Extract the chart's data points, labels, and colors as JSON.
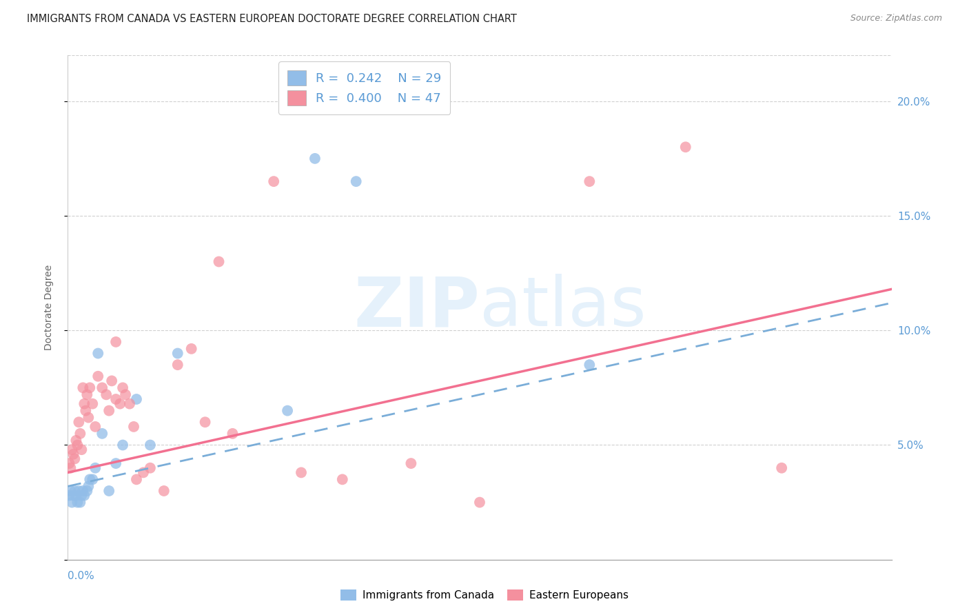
{
  "title": "IMMIGRANTS FROM CANADA VS EASTERN EUROPEAN DOCTORATE DEGREE CORRELATION CHART",
  "source": "Source: ZipAtlas.com",
  "ylabel": "Doctorate Degree",
  "xlim": [
    0.0,
    0.6
  ],
  "ylim": [
    0.0,
    0.22
  ],
  "yticks": [
    0.0,
    0.05,
    0.1,
    0.15,
    0.2
  ],
  "ytick_labels": [
    "",
    "5.0%",
    "10.0%",
    "15.0%",
    "20.0%"
  ],
  "watermark": "ZIPatlas",
  "R1": "0.242",
  "N1": "29",
  "R2": "0.400",
  "N2": "47",
  "canada_color": "#92bde8",
  "eastern_color": "#f4909e",
  "canada_trend_color": "#7aadd8",
  "eastern_trend_color": "#f27090",
  "blue_text": "#5b9bd5",
  "canada_x": [
    0.001,
    0.002,
    0.003,
    0.004,
    0.005,
    0.006,
    0.007,
    0.008,
    0.009,
    0.01,
    0.011,
    0.012,
    0.014,
    0.016,
    0.018,
    0.02,
    0.025,
    0.03,
    0.035,
    0.04,
    0.05,
    0.06,
    0.08,
    0.16,
    0.18,
    0.21,
    0.38,
    0.015,
    0.022
  ],
  "canada_y": [
    0.028,
    0.03,
    0.025,
    0.028,
    0.03,
    0.028,
    0.025,
    0.03,
    0.025,
    0.028,
    0.03,
    0.028,
    0.03,
    0.035,
    0.035,
    0.04,
    0.055,
    0.03,
    0.042,
    0.05,
    0.07,
    0.05,
    0.09,
    0.065,
    0.175,
    0.165,
    0.085,
    0.032,
    0.09
  ],
  "eastern_x": [
    0.001,
    0.002,
    0.003,
    0.004,
    0.005,
    0.006,
    0.007,
    0.008,
    0.009,
    0.01,
    0.011,
    0.012,
    0.013,
    0.014,
    0.015,
    0.016,
    0.018,
    0.02,
    0.022,
    0.025,
    0.028,
    0.03,
    0.032,
    0.035,
    0.038,
    0.04,
    0.042,
    0.045,
    0.05,
    0.055,
    0.06,
    0.07,
    0.08,
    0.09,
    0.1,
    0.11,
    0.15,
    0.17,
    0.38,
    0.45,
    0.52,
    0.035,
    0.048,
    0.2,
    0.25,
    0.3,
    0.12
  ],
  "eastern_y": [
    0.042,
    0.04,
    0.048,
    0.046,
    0.044,
    0.052,
    0.05,
    0.06,
    0.055,
    0.048,
    0.075,
    0.068,
    0.065,
    0.072,
    0.062,
    0.075,
    0.068,
    0.058,
    0.08,
    0.075,
    0.072,
    0.065,
    0.078,
    0.07,
    0.068,
    0.075,
    0.072,
    0.068,
    0.035,
    0.038,
    0.04,
    0.03,
    0.085,
    0.092,
    0.06,
    0.13,
    0.165,
    0.038,
    0.165,
    0.18,
    0.04,
    0.095,
    0.058,
    0.035,
    0.042,
    0.025,
    0.055
  ],
  "trend_canada_start": 0.032,
  "trend_canada_end": 0.112,
  "trend_eastern_start": 0.038,
  "trend_eastern_end": 0.118
}
